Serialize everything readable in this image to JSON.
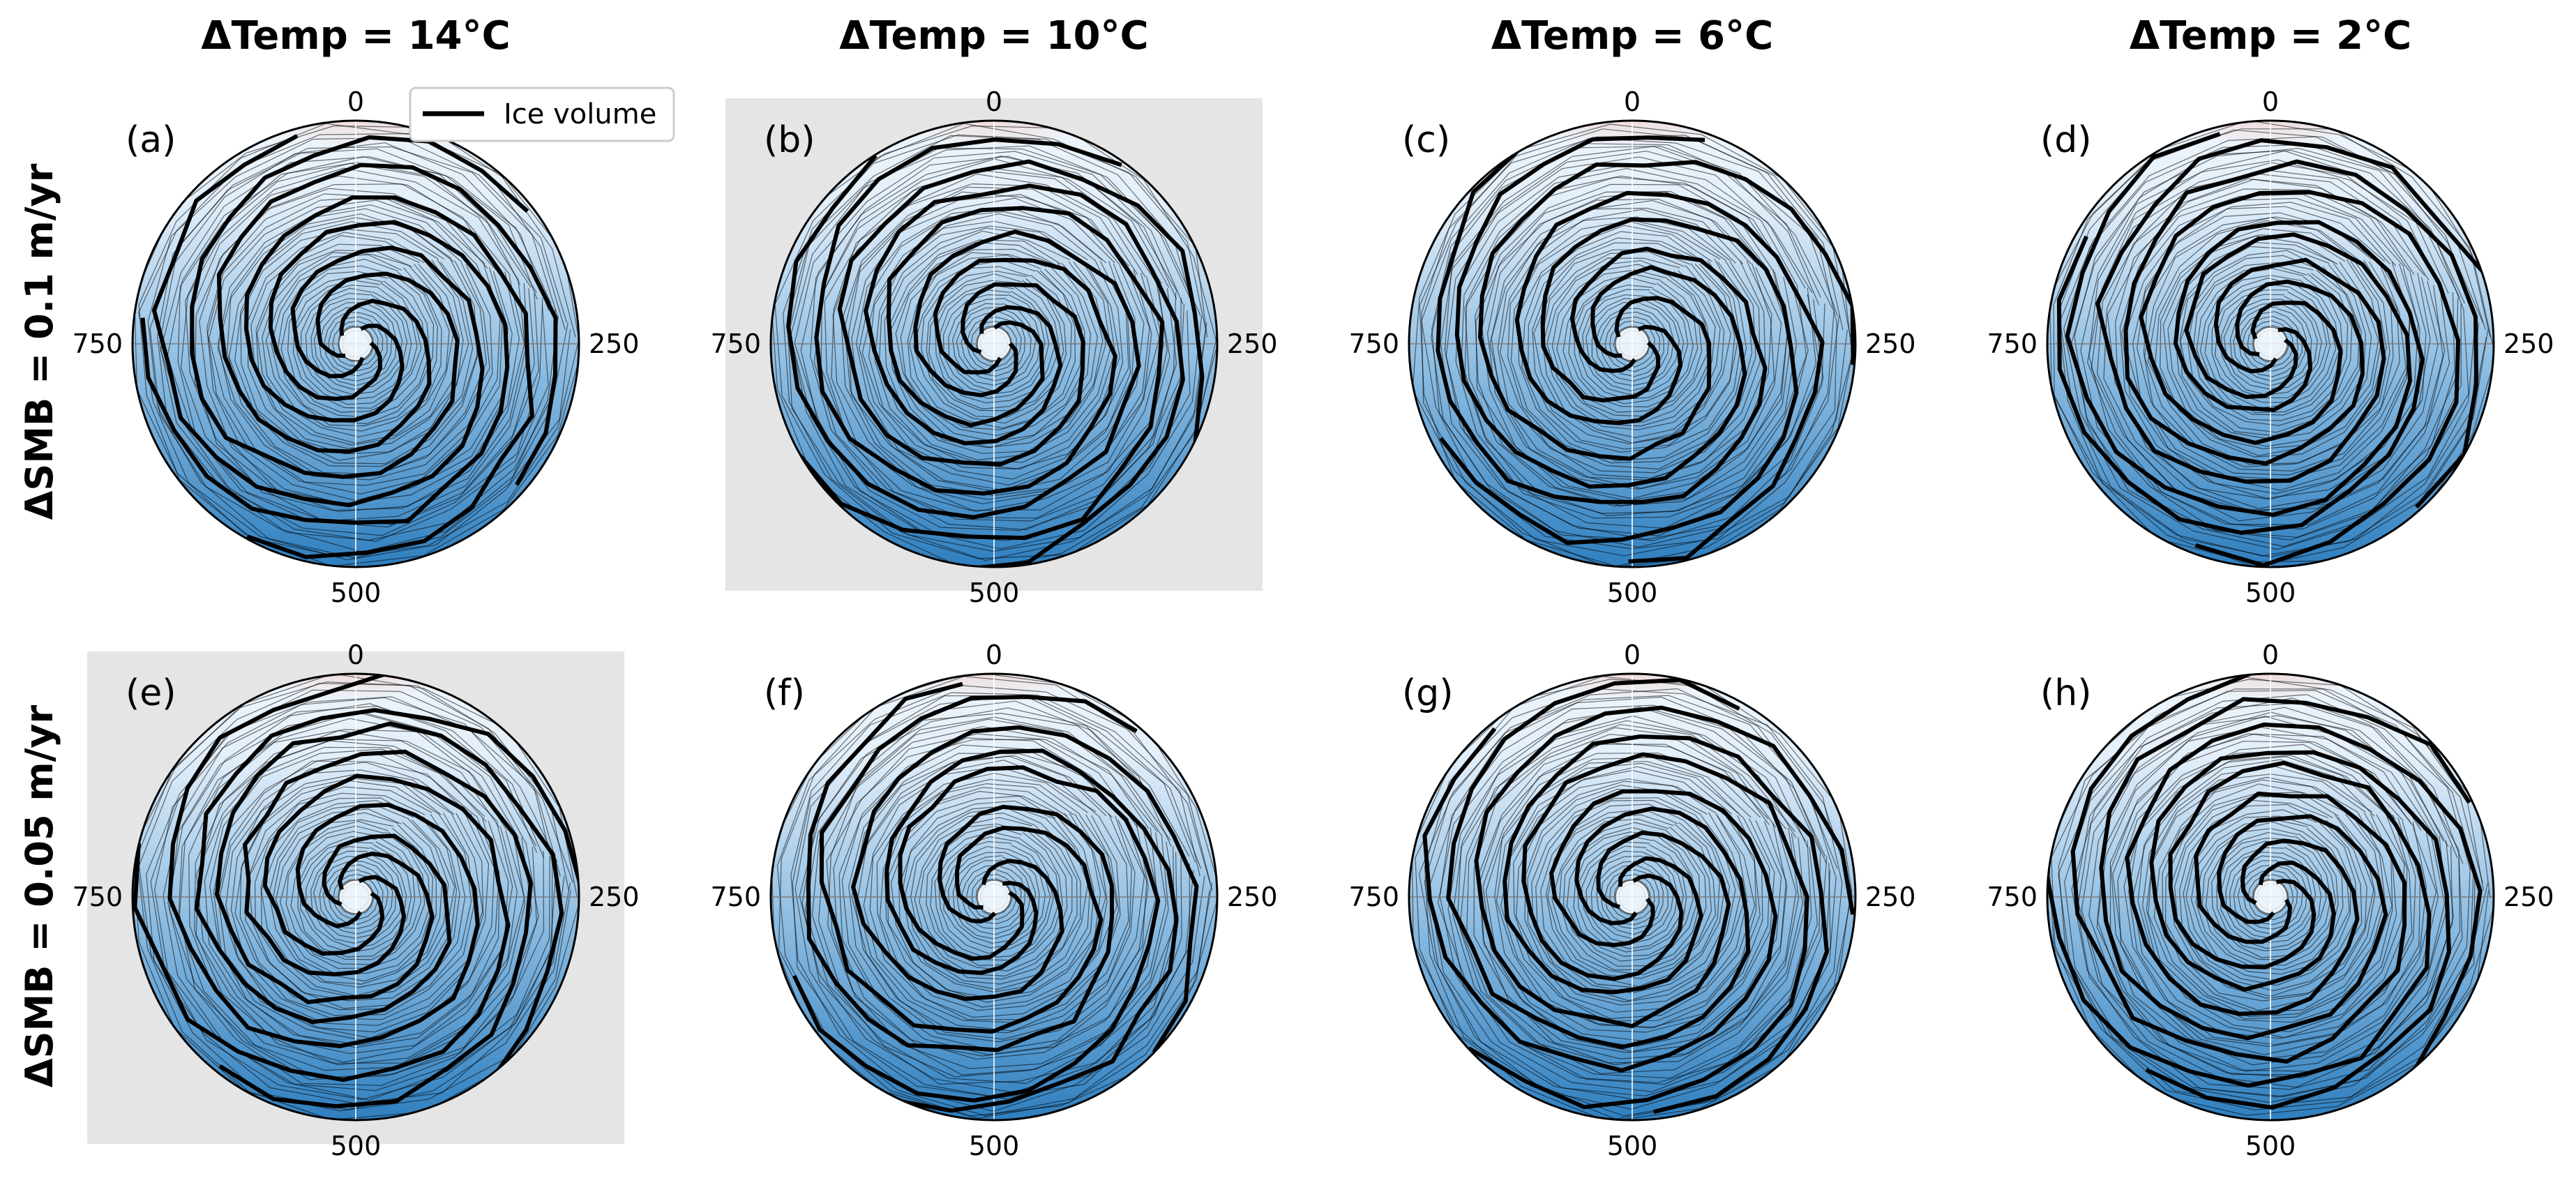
{
  "figure": {
    "column_titles": [
      "ΔTemp = 14°C",
      "ΔTemp = 10°C",
      "ΔTemp = 6°C",
      "ΔTemp = 2°C"
    ],
    "row_titles": [
      "ΔSMB = 0.1 m/yr",
      "ΔSMB = 0.05 m/yr"
    ],
    "legend_label": "Ice volume",
    "colors": {
      "warm": "#f4876b",
      "mid": "#eef5fb",
      "cold": "#2f7fbf",
      "highlight_bg": "#e5e5e5",
      "line": "#000000"
    }
  },
  "chart_data": [
    {
      "type": "polar",
      "panel_label": "(a)",
      "angular_tick_labels": [
        "0",
        "250",
        "500",
        "750"
      ],
      "angular_period": 1000,
      "highlighted": false,
      "seed": 11,
      "curl": 3.4,
      "legend": "top-right",
      "radial_range": [
        0,
        1
      ]
    },
    {
      "type": "polar",
      "panel_label": "(b)",
      "angular_tick_labels": [
        "0",
        "250",
        "500",
        "750"
      ],
      "angular_period": 1000,
      "highlighted": true,
      "seed": 23,
      "curl": 3.7,
      "radial_range": [
        0,
        1
      ]
    },
    {
      "type": "polar",
      "panel_label": "(c)",
      "angular_tick_labels": [
        "0",
        "250",
        "500",
        "750"
      ],
      "angular_period": 1000,
      "highlighted": false,
      "seed": 37,
      "curl": 3.2,
      "radial_range": [
        0,
        1
      ]
    },
    {
      "type": "polar",
      "panel_label": "(d)",
      "angular_tick_labels": [
        "0",
        "250",
        "500",
        "750"
      ],
      "angular_period": 1000,
      "highlighted": false,
      "seed": 41,
      "curl": 3.9,
      "radial_range": [
        0,
        1
      ]
    },
    {
      "type": "polar",
      "panel_label": "(e)",
      "angular_tick_labels": [
        "0",
        "250",
        "500",
        "750"
      ],
      "angular_period": 1000,
      "highlighted": true,
      "seed": 53,
      "curl": 3.5,
      "radial_range": [
        0,
        1
      ]
    },
    {
      "type": "polar",
      "panel_label": "(f)",
      "angular_tick_labels": [
        "0",
        "250",
        "500",
        "750"
      ],
      "angular_period": 1000,
      "highlighted": false,
      "seed": 67,
      "curl": 3.3,
      "radial_range": [
        0,
        1
      ]
    },
    {
      "type": "polar",
      "panel_label": "(g)",
      "angular_tick_labels": [
        "0",
        "250",
        "500",
        "750"
      ],
      "angular_period": 1000,
      "highlighted": false,
      "seed": 71,
      "curl": 3.6,
      "radial_range": [
        0,
        1
      ]
    },
    {
      "type": "polar",
      "panel_label": "(h)",
      "angular_tick_labels": [
        "0",
        "250",
        "500",
        "750"
      ],
      "angular_period": 1000,
      "highlighted": false,
      "seed": 83,
      "curl": 3.8,
      "radial_range": [
        0,
        1
      ]
    }
  ]
}
